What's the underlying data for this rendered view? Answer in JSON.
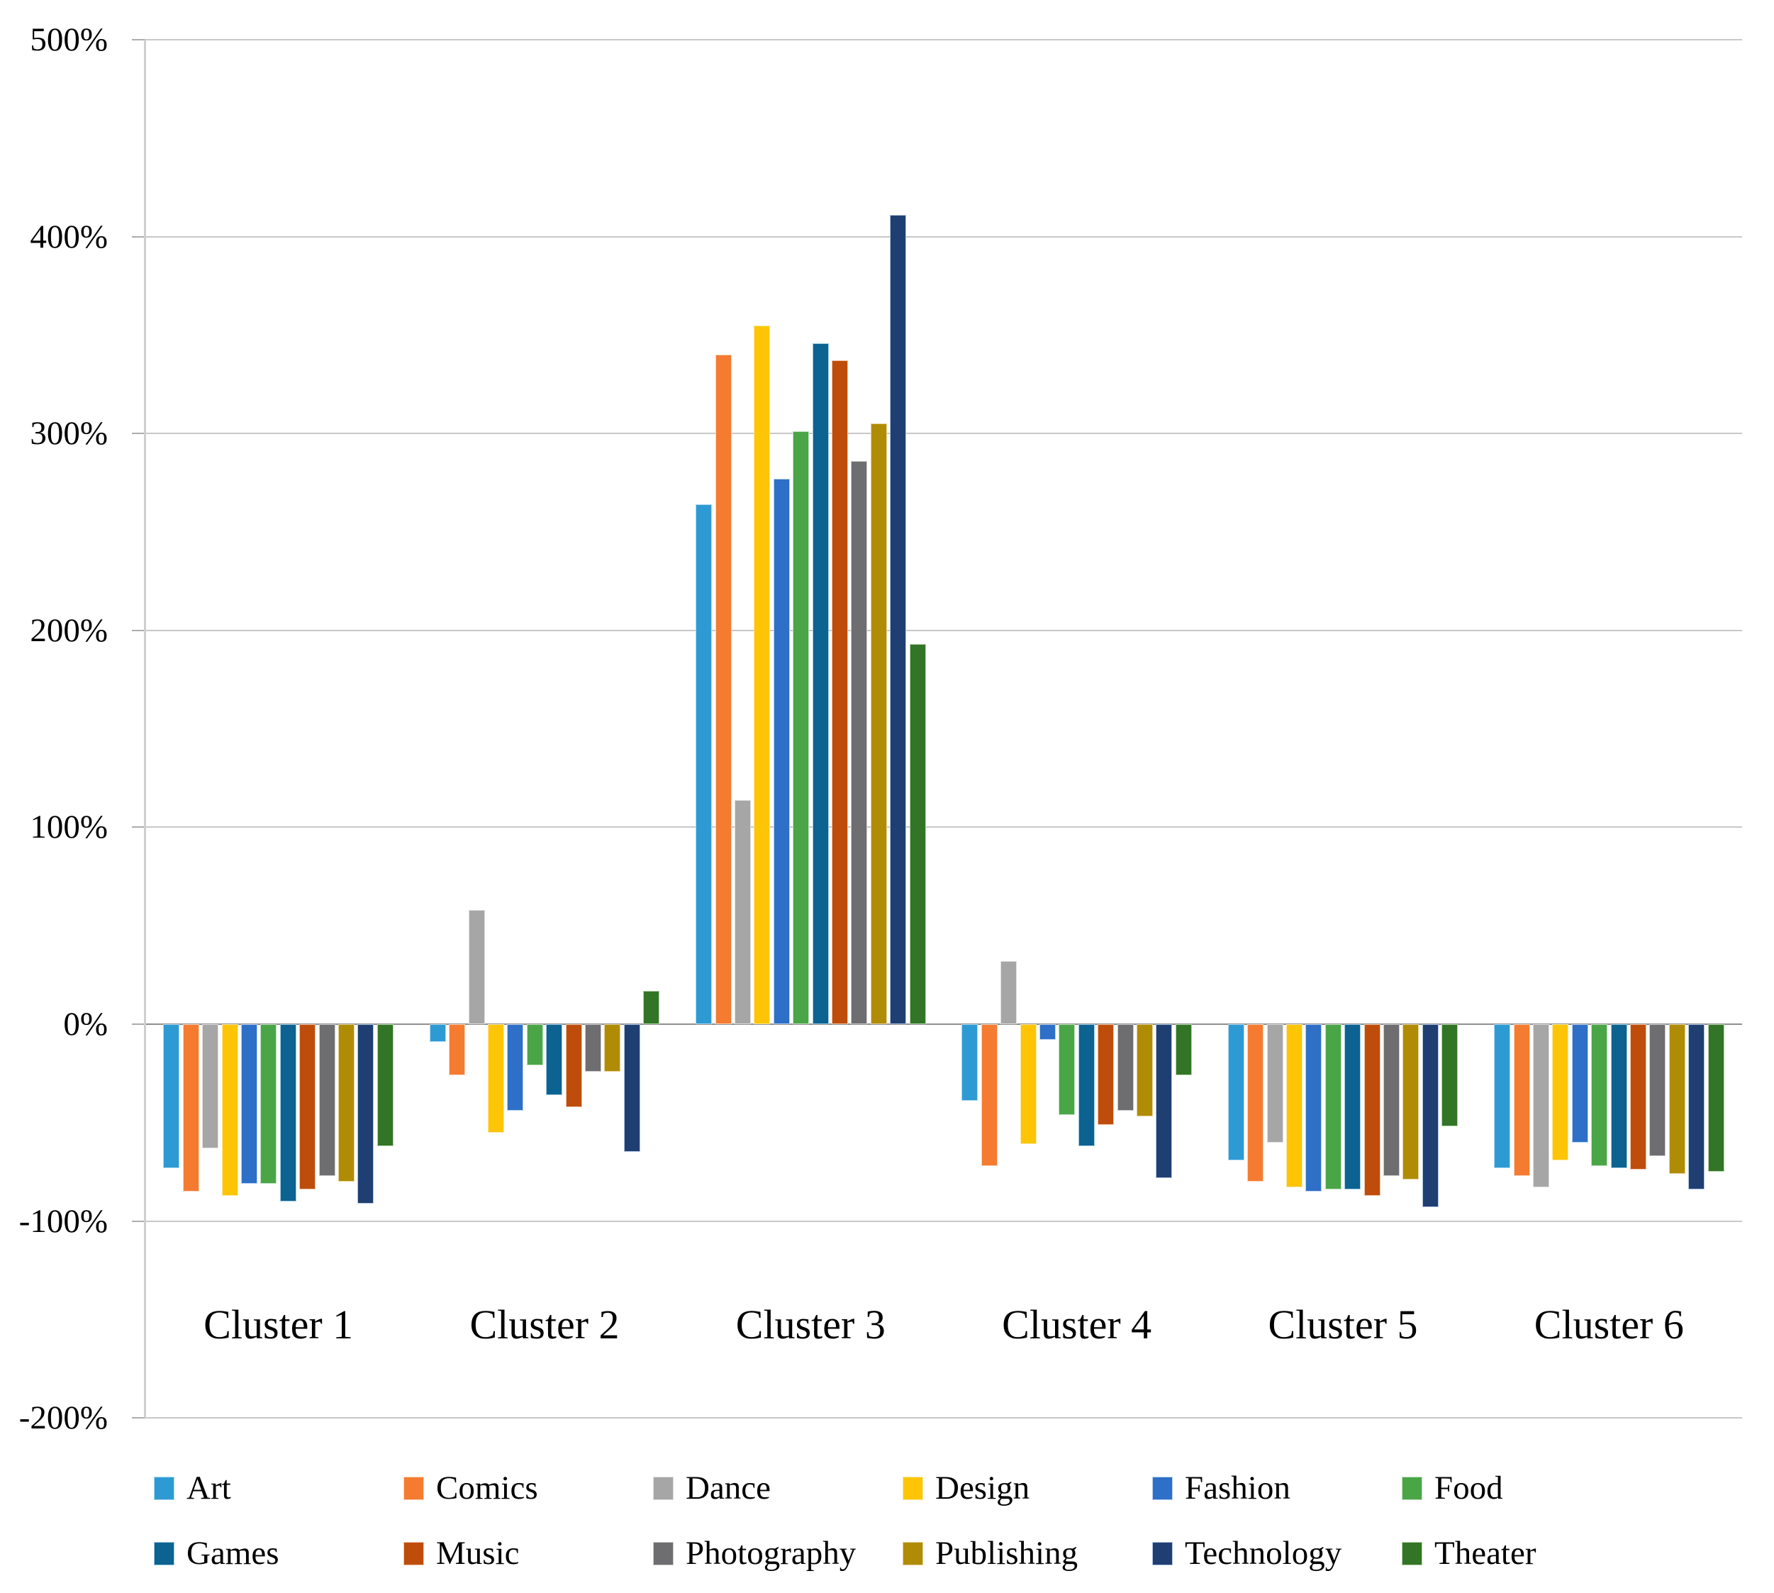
{
  "chart_data": {
    "type": "bar",
    "title": "",
    "xlabel": "",
    "ylabel": "",
    "grid": true,
    "legend_position": "bottom",
    "y_axis": {
      "min": -200,
      "max": 500,
      "step": 100,
      "unit": "%",
      "tick_labels": [
        "500%",
        "400%",
        "300%",
        "200%",
        "100%",
        "0%",
        "-100%",
        "-200%"
      ]
    },
    "categories": [
      "Cluster 1",
      "Cluster 2",
      "Cluster 3",
      "Cluster 4",
      "Cluster 5",
      "Cluster 6"
    ],
    "series": [
      {
        "name": "Art",
        "color": "#2E9AD4",
        "border": "#AEDBF2",
        "values": [
          -73,
          -9,
          264,
          -39,
          -69,
          -73
        ]
      },
      {
        "name": "Comics",
        "color": "#F57B31",
        "border": "#FBD6BC",
        "values": [
          -85,
          -26,
          340,
          -72,
          -80,
          -77
        ]
      },
      {
        "name": "Dance",
        "color": "#A6A6A6",
        "border": "#E0E0E0",
        "values": [
          -63,
          58,
          114,
          32,
          -60,
          -83
        ]
      },
      {
        "name": "Design",
        "color": "#FDC506",
        "border": "#FEE9A2",
        "values": [
          -87,
          -55,
          355,
          -61,
          -83,
          -69
        ]
      },
      {
        "name": "Fashion",
        "color": "#2E6FC7",
        "border": "#BDD2F1",
        "values": [
          -81,
          -44,
          277,
          -8,
          -85,
          -60
        ]
      },
      {
        "name": "Food",
        "color": "#4AA547",
        "border": "#C1E2BF",
        "values": [
          -81,
          -21,
          301,
          -46,
          -84,
          -72
        ]
      },
      {
        "name": "Games",
        "color": "#0C6291",
        "border": "#9FCDE5",
        "values": [
          -90,
          -36,
          346,
          -62,
          -84,
          -73
        ]
      },
      {
        "name": "Music",
        "color": "#BE4D0B",
        "border": "#F3C5A9",
        "values": [
          -84,
          -42,
          337,
          -51,
          -87,
          -74
        ]
      },
      {
        "name": "Photography",
        "color": "#6E6E70",
        "border": "#CCCCCE",
        "values": [
          -77,
          -24,
          286,
          -44,
          -77,
          -67
        ]
      },
      {
        "name": "Publishing",
        "color": "#B08C06",
        "border": "#E7D298",
        "values": [
          -80,
          -24,
          305,
          -47,
          -79,
          -76
        ]
      },
      {
        "name": "Technology",
        "color": "#1F3F73",
        "border": "#B1C5E2",
        "values": [
          -91,
          -65,
          411,
          -78,
          -93,
          -84
        ]
      },
      {
        "name": "Theater",
        "color": "#337526",
        "border": "#B6D6AE",
        "values": [
          -62,
          17,
          193,
          -26,
          -52,
          -75
        ]
      }
    ],
    "colors": {
      "gridline": "#C8C8C8",
      "zero_line": "#8F8F8F",
      "axis_line": "#CFCFCF",
      "tick": "#ADADAD",
      "text": "#000000",
      "background": "#FFFFFF"
    }
  }
}
